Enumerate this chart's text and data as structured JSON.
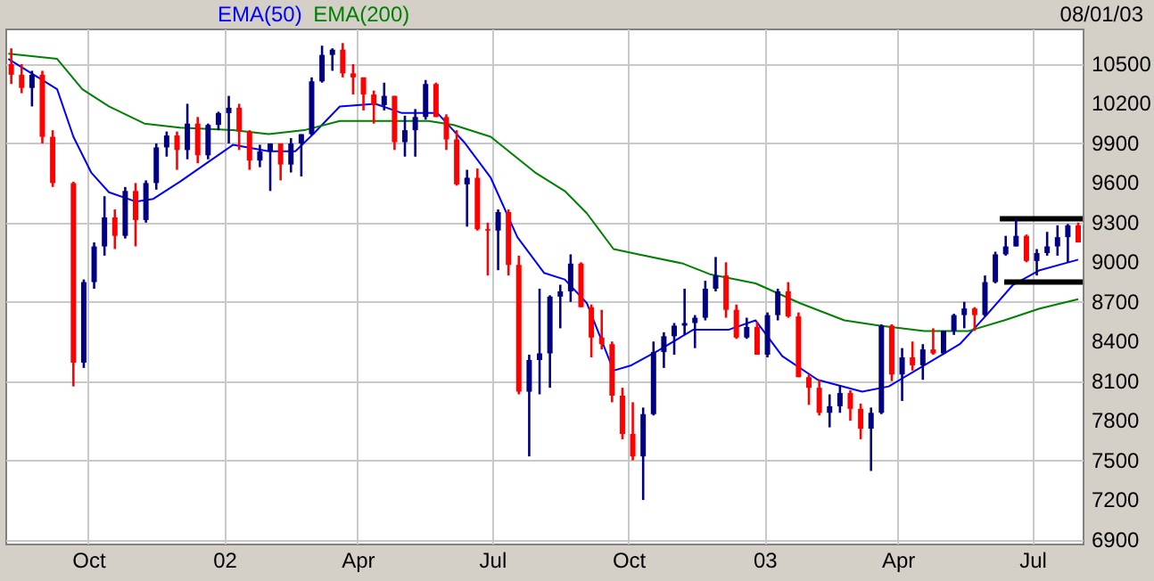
{
  "chart_data": {
    "type": "candlestick",
    "annotations": [
      "08/01/03"
    ],
    "legend": "top left",
    "grid": true,
    "xlim": [
      "2001-08-06",
      "2003-08-04"
    ],
    "xticks": [
      {
        "value": "2001-10-01",
        "label": "Oct"
      },
      {
        "value": "2002-01-01",
        "label": "02"
      },
      {
        "value": "2002-04-01",
        "label": "Apr"
      },
      {
        "value": "2002-07-01",
        "label": "Jul"
      },
      {
        "value": "2002-10-01",
        "label": "Oct"
      },
      {
        "value": "2003-01-01",
        "label": "03"
      },
      {
        "value": "2003-04-01",
        "label": "Apr"
      },
      {
        "value": "2003-07-01",
        "label": "Jul"
      }
    ],
    "ylim": [
      6870,
      10770
    ],
    "yticks": [
      6900,
      7200,
      7500,
      7800,
      8100,
      8400,
      8700,
      9000,
      9300,
      9600,
      9900,
      10200,
      10500
    ],
    "x": [
      "2001-08-10",
      "2001-08-17",
      "2001-08-24",
      "2001-08-31",
      "2001-09-07",
      "2001-09-21",
      "2001-09-28",
      "2001-10-05",
      "2001-10-12",
      "2001-10-19",
      "2001-10-26",
      "2001-11-02",
      "2001-11-09",
      "2001-11-16",
      "2001-11-23",
      "2001-11-30",
      "2001-12-07",
      "2001-12-14",
      "2001-12-21",
      "2001-12-28",
      "2002-01-04",
      "2002-01-11",
      "2002-01-18",
      "2002-01-25",
      "2002-02-01",
      "2002-02-08",
      "2002-02-15",
      "2002-02-22",
      "2002-03-01",
      "2002-03-08",
      "2002-03-15",
      "2002-03-22",
      "2002-03-29",
      "2002-04-05",
      "2002-04-12",
      "2002-04-19",
      "2002-04-26",
      "2002-05-03",
      "2002-05-10",
      "2002-05-17",
      "2002-05-24",
      "2002-05-31",
      "2002-06-07",
      "2002-06-14",
      "2002-06-21",
      "2002-06-28",
      "2002-07-05",
      "2002-07-12",
      "2002-07-19",
      "2002-07-26",
      "2002-08-02",
      "2002-08-09",
      "2002-08-16",
      "2002-08-23",
      "2002-08-30",
      "2002-09-06",
      "2002-09-13",
      "2002-09-20",
      "2002-09-27",
      "2002-10-04",
      "2002-10-11",
      "2002-10-18",
      "2002-10-25",
      "2002-11-01",
      "2002-11-08",
      "2002-11-15",
      "2002-11-22",
      "2002-11-29",
      "2002-12-06",
      "2002-12-13",
      "2002-12-20",
      "2002-12-27",
      "2003-01-03",
      "2003-01-10",
      "2003-01-17",
      "2003-01-24",
      "2003-01-31",
      "2003-02-07",
      "2003-02-14",
      "2003-02-21",
      "2003-02-28",
      "2003-03-07",
      "2003-03-14",
      "2003-03-21",
      "2003-03-28",
      "2003-04-04",
      "2003-04-11",
      "2003-04-18",
      "2003-04-25",
      "2003-05-02",
      "2003-05-09",
      "2003-05-16",
      "2003-05-23",
      "2003-05-30",
      "2003-06-06",
      "2003-06-13",
      "2003-06-20",
      "2003-06-27",
      "2003-07-04",
      "2003-07-11",
      "2003-07-18",
      "2003-07-25",
      "2003-08-01"
    ],
    "ohlc": [
      [
        10500,
        10620,
        10350,
        10420
      ],
      [
        10420,
        10500,
        10280,
        10320
      ],
      [
        10320,
        10450,
        10180,
        10420
      ],
      [
        10420,
        10450,
        9900,
        9950
      ],
      [
        9950,
        10000,
        9570,
        9600
      ],
      [
        9600,
        9610,
        8060,
        8240
      ],
      [
        8240,
        8870,
        8200,
        8850
      ],
      [
        8850,
        9150,
        8800,
        9120
      ],
      [
        9120,
        9500,
        9050,
        9340
      ],
      [
        9340,
        9400,
        9100,
        9200
      ],
      [
        9200,
        9570,
        9180,
        9540
      ],
      [
        9540,
        9600,
        9120,
        9320
      ],
      [
        9320,
        9620,
        9300,
        9600
      ],
      [
        9600,
        9900,
        9550,
        9870
      ],
      [
        9870,
        9990,
        9800,
        9960
      ],
      [
        9960,
        9990,
        9700,
        9850
      ],
      [
        9850,
        10200,
        9780,
        10050
      ],
      [
        10050,
        10100,
        9750,
        9810
      ],
      [
        9810,
        10050,
        9780,
        10040
      ],
      [
        10040,
        10140,
        10000,
        10130
      ],
      [
        10130,
        10260,
        9900,
        10170
      ],
      [
        10170,
        10200,
        9850,
        9990
      ],
      [
        9990,
        10000,
        9700,
        9770
      ],
      [
        9770,
        9890,
        9720,
        9840
      ],
      [
        9840,
        9900,
        9540,
        9900
      ],
      [
        9900,
        9900,
        9620,
        9740
      ],
      [
        9740,
        9940,
        9680,
        9900
      ],
      [
        9900,
        9970,
        9650,
        9970
      ],
      [
        9970,
        10400,
        9960,
        10370
      ],
      [
        10370,
        10640,
        10360,
        10570
      ],
      [
        10570,
        10620,
        10450,
        10610
      ],
      [
        10610,
        10660,
        10400,
        10430
      ],
      [
        10430,
        10500,
        10270,
        10400
      ],
      [
        10400,
        10400,
        10150,
        10270
      ],
      [
        10270,
        10300,
        10050,
        10190
      ],
      [
        10190,
        10360,
        10150,
        10260
      ],
      [
        10260,
        10260,
        9850,
        9910
      ],
      [
        9910,
        10110,
        9800,
        10000
      ],
      [
        10000,
        10160,
        9800,
        10100
      ],
      [
        10100,
        10380,
        10080,
        10350
      ],
      [
        10350,
        10360,
        10100,
        10100
      ],
      [
        10100,
        10120,
        9850,
        9930
      ],
      [
        9930,
        10000,
        9580,
        9590
      ],
      [
        9590,
        9700,
        9270,
        9640
      ],
      [
        9640,
        9710,
        9240,
        9250
      ],
      [
        9250,
        9300,
        8900,
        9240
      ],
      [
        9240,
        9400,
        8940,
        9380
      ],
      [
        9380,
        9400,
        8900,
        8980
      ],
      [
        8980,
        9050,
        8000,
        8020
      ],
      [
        8020,
        8300,
        7530,
        8260
      ],
      [
        8260,
        8800,
        8000,
        8310
      ],
      [
        8310,
        8750,
        8050,
        8740
      ],
      [
        8740,
        8830,
        8500,
        8780
      ],
      [
        8780,
        9060,
        8700,
        8990
      ],
      [
        8990,
        9000,
        8660,
        8660
      ],
      [
        8660,
        8680,
        8280,
        8430
      ],
      [
        8430,
        8640,
        8340,
        8380
      ],
      [
        8380,
        8400,
        7940,
        7990
      ],
      [
        7990,
        8050,
        7660,
        7700
      ],
      [
        7700,
        7940,
        7500,
        7530
      ],
      [
        7530,
        7900,
        7200,
        7850
      ],
      [
        7850,
        8400,
        7840,
        8320
      ],
      [
        8320,
        8470,
        8200,
        8440
      ],
      [
        8440,
        8540,
        8300,
        8520
      ],
      [
        8520,
        8800,
        8450,
        8540
      ],
      [
        8540,
        8600,
        8350,
        8580
      ],
      [
        8580,
        8860,
        8560,
        8800
      ],
      [
        8800,
        9040,
        8780,
        8900
      ],
      [
        8900,
        9000,
        8580,
        8640
      ],
      [
        8640,
        8680,
        8420,
        8430
      ],
      [
        8430,
        8580,
        8420,
        8510
      ],
      [
        8510,
        8550,
        8300,
        8300
      ],
      [
        8300,
        8620,
        8280,
        8600
      ],
      [
        8600,
        8800,
        8560,
        8780
      ],
      [
        8780,
        8850,
        8580,
        8590
      ],
      [
        8590,
        8620,
        8130,
        8130
      ],
      [
        8130,
        8150,
        7920,
        8050
      ],
      [
        8050,
        8110,
        7840,
        7860
      ],
      [
        7860,
        8000,
        7750,
        7910
      ],
      [
        7910,
        8070,
        7860,
        8010
      ],
      [
        8010,
        8030,
        7800,
        7890
      ],
      [
        7890,
        7930,
        7660,
        7740
      ],
      [
        7740,
        7900,
        7420,
        7860
      ],
      [
        7860,
        8530,
        7850,
        8520
      ],
      [
        8520,
        8530,
        8100,
        8150
      ],
      [
        8150,
        8350,
        7950,
        8280
      ],
      [
        8280,
        8400,
        8180,
        8220
      ],
      [
        8220,
        8380,
        8110,
        8340
      ],
      [
        8340,
        8500,
        8300,
        8310
      ],
      [
        8310,
        8480,
        8300,
        8480
      ],
      [
        8480,
        8610,
        8450,
        8600
      ],
      [
        8600,
        8700,
        8500,
        8650
      ],
      [
        8650,
        8660,
        8480,
        8600
      ],
      [
        8600,
        8900,
        8590,
        8850
      ],
      [
        8850,
        9080,
        8840,
        9060
      ],
      [
        9060,
        9200,
        9050,
        9120
      ],
      [
        9120,
        9330,
        9120,
        9200
      ],
      [
        9200,
        9210,
        9000,
        9010
      ],
      [
        9010,
        9100,
        8900,
        9070
      ],
      [
        9070,
        9230,
        9050,
        9120
      ],
      [
        9120,
        9280,
        9050,
        9190
      ],
      [
        9190,
        9290,
        9000,
        9280
      ],
      [
        9280,
        9300,
        9150,
        9150
      ]
    ],
    "colors": [
      "#ff0000",
      "#ff0000",
      "#000080",
      "#ff0000",
      "#ff0000",
      "#ff0000",
      "#000080",
      "#000080",
      "#000080",
      "#ff0000",
      "#000080",
      "#ff0000",
      "#000080",
      "#000080",
      "#000080",
      "#ff0000",
      "#000080",
      "#ff0000",
      "#000080",
      "#000080",
      "#000080",
      "#ff0000",
      "#ff0000",
      "#000080",
      "#000080",
      "#ff0000",
      "#000080",
      "#000080",
      "#000080",
      "#000080",
      "#000080",
      "#ff0000",
      "#ff0000",
      "#ff0000",
      "#ff0000",
      "#000080",
      "#ff0000",
      "#000080",
      "#000080",
      "#000080",
      "#ff0000",
      "#ff0000",
      "#ff0000",
      "#000080",
      "#ff0000",
      "#ff0000",
      "#000080",
      "#ff0000",
      "#ff0000",
      "#000080",
      "#000080",
      "#000080",
      "#000080",
      "#000080",
      "#ff0000",
      "#ff0000",
      "#ff0000",
      "#ff0000",
      "#ff0000",
      "#ff0000",
      "#000080",
      "#000080",
      "#000080",
      "#000080",
      "#000080",
      "#000080",
      "#000080",
      "#000080",
      "#ff0000",
      "#ff0000",
      "#000080",
      "#ff0000",
      "#000080",
      "#000080",
      "#ff0000",
      "#ff0000",
      "#ff0000",
      "#ff0000",
      "#000080",
      "#000080",
      "#ff0000",
      "#ff0000",
      "#000080",
      "#000080",
      "#ff0000",
      "#000080",
      "#ff0000",
      "#000080",
      "#ff0000",
      "#000080",
      "#000080",
      "#000080",
      "#ff0000",
      "#000080",
      "#000080",
      "#000080",
      "#000080",
      "#ff0000",
      "#000080",
      "#000080",
      "#000080",
      "#000080",
      "#ff0000"
    ],
    "series": [
      {
        "name": "EMA(50)",
        "type": "line",
        "color": "#0000ff",
        "x": [
          "2001-08-08",
          "2001-09-10",
          "2001-09-21",
          "2001-10-03",
          "2001-10-15",
          "2001-11-02",
          "2001-11-14",
          "2001-12-02",
          "2001-12-20",
          "2002-01-07",
          "2002-01-31",
          "2002-02-18",
          "2002-03-02",
          "2002-03-20",
          "2002-04-13",
          "2002-05-01",
          "2002-05-25",
          "2002-06-12",
          "2002-06-30",
          "2002-07-18",
          "2002-08-05",
          "2002-08-19",
          "2002-09-03",
          "2002-09-21",
          "2002-10-03",
          "2002-10-21",
          "2002-11-14",
          "2002-12-08",
          "2002-12-26",
          "2003-01-13",
          "2003-02-06",
          "2003-03-08",
          "2003-03-26",
          "2003-04-13",
          "2003-05-13",
          "2003-05-31",
          "2003-06-18",
          "2003-07-06",
          "2003-08-01"
        ],
        "values": [
          10540,
          10310,
          9950,
          9680,
          9530,
          9460,
          9480,
          9610,
          9750,
          9890,
          9840,
          9840,
          9970,
          10180,
          10200,
          10130,
          10130,
          9910,
          9640,
          9190,
          8920,
          8870,
          8690,
          8180,
          8220,
          8330,
          8490,
          8490,
          8560,
          8290,
          8110,
          8020,
          8060,
          8180,
          8380,
          8600,
          8830,
          8940,
          9020
        ]
      },
      {
        "name": "EMA(200)",
        "type": "line",
        "color": "#008000",
        "x": [
          "2001-08-08",
          "2001-09-10",
          "2001-09-27",
          "2001-10-15",
          "2001-11-08",
          "2001-12-02",
          "2002-01-07",
          "2002-01-31",
          "2002-02-24",
          "2002-03-20",
          "2002-04-13",
          "2002-05-19",
          "2002-06-05",
          "2002-06-30",
          "2002-07-30",
          "2002-08-19",
          "2002-09-03",
          "2002-09-21",
          "2002-10-08",
          "2002-11-07",
          "2002-11-25",
          "2002-12-26",
          "2003-01-25",
          "2003-02-24",
          "2003-03-20",
          "2003-04-19",
          "2003-05-19",
          "2003-06-12",
          "2003-07-06",
          "2003-08-01"
        ],
        "values": [
          10580,
          10540,
          10310,
          10180,
          10050,
          10020,
          10000,
          9970,
          10000,
          10070,
          10070,
          10070,
          10040,
          9950,
          9680,
          9540,
          9370,
          9100,
          9060,
          8990,
          8910,
          8840,
          8690,
          8560,
          8520,
          8480,
          8480,
          8560,
          8650,
          8720
        ]
      },
      {
        "type": "line",
        "color": "#000000",
        "x": [
          "2003-06-09",
          "2003-08-04"
        ],
        "values": [
          9330,
          9330
        ]
      },
      {
        "type": "line",
        "color": "#000000",
        "x": [
          "2003-06-12",
          "2003-08-04"
        ],
        "values": [
          8850,
          8850
        ]
      }
    ]
  }
}
